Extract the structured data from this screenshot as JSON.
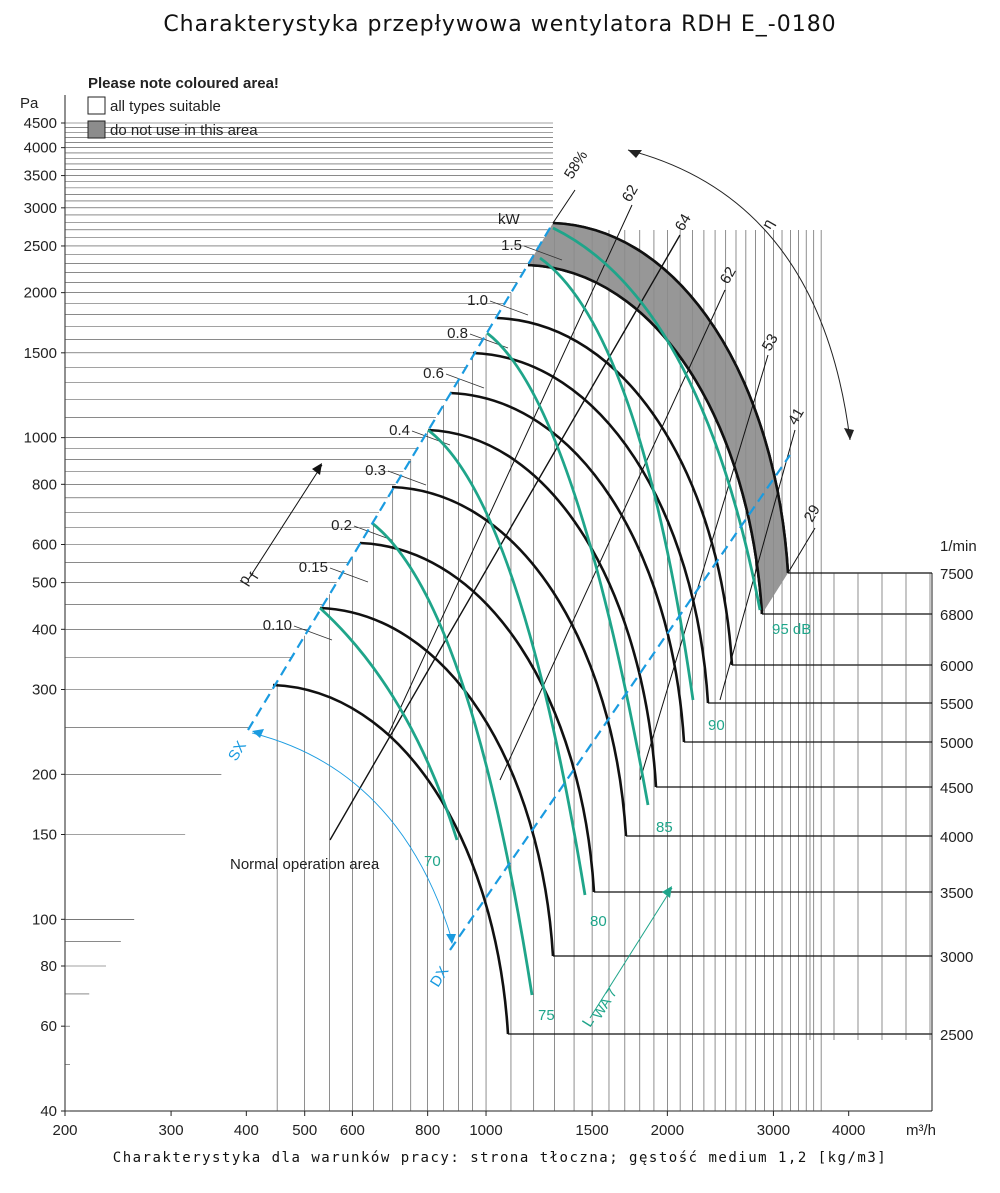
{
  "page": {
    "title": "Charakterystyka przepływowa wentylatora RDH E_-0180",
    "footer": "Charakterystyka dla warunków pracy: strona tłoczna; gęstość medium 1,2 [kg/m3]"
  },
  "legend": {
    "heading": "Please note coloured area!",
    "item_suitable": "all types suitable",
    "item_not_use": "do not use in this area",
    "colors": {
      "not_use": "#8c8c8c"
    }
  },
  "chart_data": {
    "type": "line",
    "x_scale": "log",
    "y_scale": "log",
    "xlim": [
      200,
      5500
    ],
    "ylim": [
      40,
      4800
    ],
    "xlabel": "m³/h",
    "ylabel": "Pa",
    "x_ticks": [
      200,
      300,
      400,
      500,
      600,
      800,
      1000,
      1500,
      2000,
      3000,
      4000
    ],
    "y_ticks": [
      40,
      60,
      80,
      100,
      150,
      200,
      300,
      400,
      500,
      600,
      800,
      1000,
      1500,
      2000,
      2500,
      3000,
      3500,
      4000,
      4500
    ],
    "speed_axis": {
      "label": "1/min",
      "values": [
        7500,
        6800,
        6000,
        5500,
        5000,
        4500,
        4000,
        3500,
        3000,
        2500
      ]
    },
    "power_axis": {
      "label": "kW",
      "values": [
        "1.5",
        "1.0",
        "0.8",
        "0.6",
        "0.4",
        "0.3",
        "0.2",
        "0.15",
        "0.10"
      ]
    },
    "efficiency_lines": {
      "label": "η",
      "values": [
        "58%",
        "62",
        "64",
        "62",
        "53",
        "41",
        "29"
      ]
    },
    "sound_levels": {
      "label": "L",
      "label_sub": "WA 7",
      "values": [
        "70",
        "75",
        "80",
        "85",
        "90",
        "95 dB"
      ]
    },
    "boundaries": {
      "sx": "SX",
      "dx": "DX",
      "pressure": "p",
      "pressure_sub": "f"
    },
    "annotations": {
      "normal_area": "Normal operation area"
    },
    "colors": {
      "fan_curve": "#111111",
      "sound": "#1fa58a",
      "boundary": "#1a9be0",
      "grid": "#333333"
    }
  }
}
